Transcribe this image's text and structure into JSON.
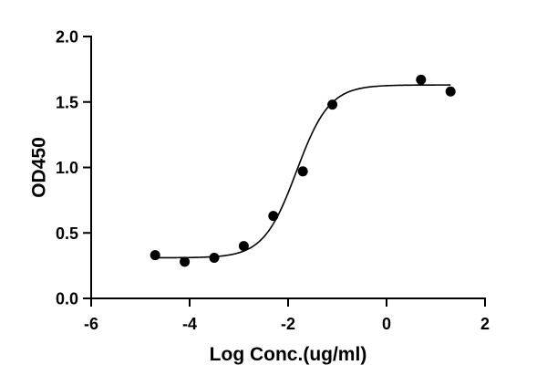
{
  "chart_data": {
    "type": "scatter",
    "title": "",
    "xlabel": "Log Conc.(ug/ml)",
    "ylabel": "OD450",
    "xlim": [
      -6,
      2
    ],
    "ylim": [
      0,
      2.0
    ],
    "x_ticks": [
      -6,
      -4,
      -2,
      0,
      2
    ],
    "x_tick_labels": [
      "-6",
      "-4",
      "-2",
      "0",
      "2"
    ],
    "y_ticks": [
      0,
      0.5,
      1.0,
      1.5,
      2.0
    ],
    "y_tick_labels": [
      "0.0",
      "0.5",
      "1.0",
      "1.5",
      "2.0"
    ],
    "grid": false,
    "legend": "none",
    "series": [
      {
        "x": [
          -4.7,
          -4.1,
          -3.5,
          -2.9,
          -2.3,
          -1.7,
          -1.1,
          0.7,
          1.3
        ],
        "y": [
          0.33,
          0.28,
          0.31,
          0.4,
          0.63,
          0.97,
          1.48,
          1.67,
          1.58
        ],
        "marker": "circle",
        "color": "#000000"
      }
    ],
    "fit_curve": {
      "model": "four-parameter logistic",
      "bottom": 0.31,
      "top": 1.63,
      "log_ec50": -1.83,
      "hill_slope": 1.3,
      "x_range": [
        -4.7,
        1.3
      ],
      "color": "#000000"
    }
  }
}
